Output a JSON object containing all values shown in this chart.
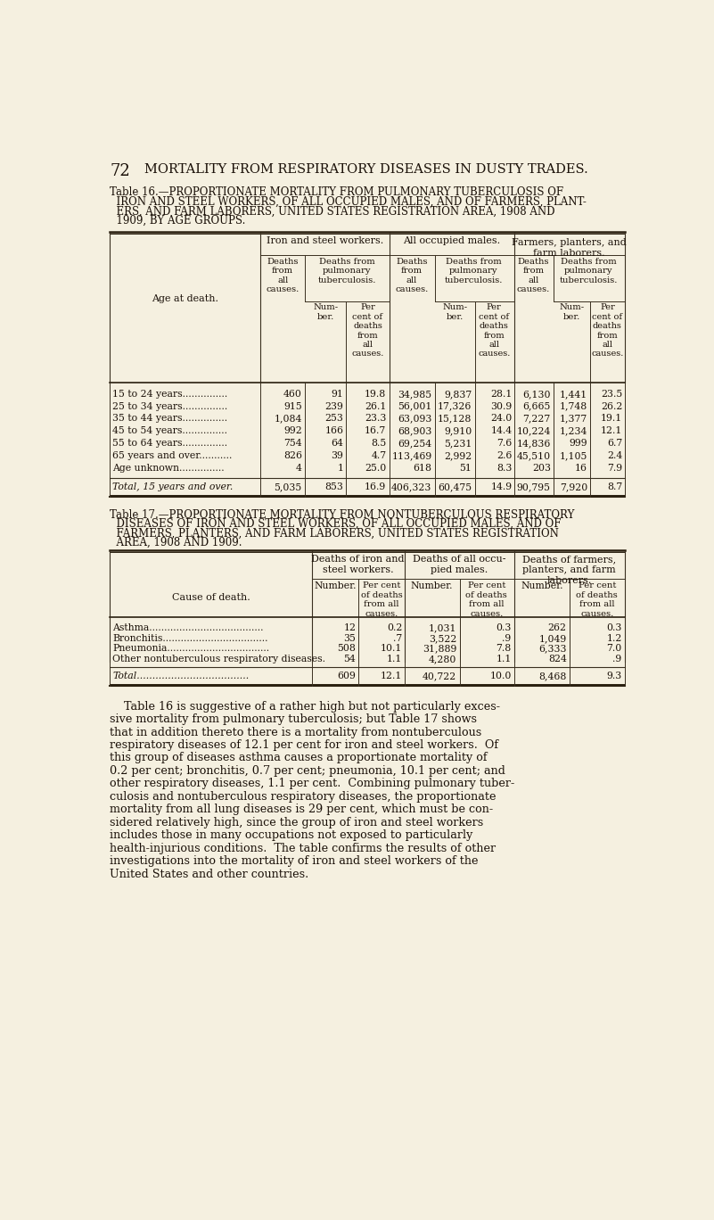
{
  "bg_color": "#f5f0e0",
  "page_header_num": "72",
  "page_header_text": "MORTALITY FROM RESPIRATORY DISEASES IN DUSTY TRADES.",
  "table16_title_lines": [
    "Table 16.—PROPORTIONATE MORTALITY FROM PULMONARY TUBERCULOSIS OF",
    "  IRON AND STEEL WORKERS, OF ALL OCCUPIED MALES, AND OF FARMERS, PLANT-",
    "  ERS, AND FARM LABORERS, UNITED STATES REGISTRATION AREA, 1908 AND",
    "  1909, BY AGE GROUPS."
  ],
  "table16_ages": [
    "15 to 24 years...............",
    "25 to 34 years...............",
    "35 to 44 years...............",
    "45 to 54 years...............",
    "55 to 64 years...............",
    "65 years and over...........",
    "Age unknown..............."
  ],
  "table16_data": [
    [
      "460",
      "91",
      "19.8",
      "34,985",
      "9,837",
      "28.1",
      "6,130",
      "1,441",
      "23.5"
    ],
    [
      "915",
      "239",
      "26.1",
      "56,001",
      "17,326",
      "30.9",
      "6,665",
      "1,748",
      "26.2"
    ],
    [
      "1,084",
      "253",
      "23.3",
      "63,093",
      "15,128",
      "24.0",
      "7,227",
      "1,377",
      "19.1"
    ],
    [
      "992",
      "166",
      "16.7",
      "68,903",
      "9,910",
      "14.4",
      "10,224",
      "1,234",
      "12.1"
    ],
    [
      "754",
      "64",
      "8.5",
      "69,254",
      "5,231",
      "7.6",
      "14,836",
      "999",
      "6.7"
    ],
    [
      "826",
      "39",
      "4.7",
      "113,469",
      "2,992",
      "2.6",
      "45,510",
      "1,105",
      "2.4"
    ],
    [
      "4",
      "1",
      "25.0",
      "618",
      "51",
      "8.3",
      "203",
      "16",
      "7.9"
    ]
  ],
  "table16_total_label": "Total, 15 years and over.",
  "table16_total": [
    "5,035",
    "853",
    "16.9",
    "406,323",
    "60,475",
    "14.9",
    "90,795",
    "7,920",
    "8.7"
  ],
  "table17_title_lines": [
    "Table 17.—PROPORTIONATE MORTALITY FROM NONTUBERCULOUS RESPIRATORY",
    "  DISEASES OF IRON AND STEEL WORKERS, OF ALL OCCUPIED MALES, AND OF",
    "  FARMERS, PLANTERS, AND FARM LABORERS, UNITED STATES REGISTRATION",
    "  AREA, 1908 AND 1909."
  ],
  "table17_causes": [
    "Asthma......................................",
    "Bronchitis...................................",
    "Pneumonia..................................",
    "Other nontuberculous respiratory diseases."
  ],
  "table17_data": [
    [
      "12",
      "0.2",
      "1,031",
      "0.3",
      "262",
      "0.3"
    ],
    [
      "35",
      ".7",
      "3,522",
      ".9",
      "1,049",
      "1.2"
    ],
    [
      "508",
      "10.1",
      "31,889",
      "7.8",
      "6,333",
      "7.0"
    ],
    [
      "54",
      "1.1",
      "4,280",
      "1.1",
      "824",
      ".9"
    ]
  ],
  "table17_total_label": "Total....................................",
  "table17_total": [
    "609",
    "12.1",
    "40,722",
    "10.0",
    "8,468",
    "9.3"
  ],
  "paragraph_lines": [
    "    Table 16 is suggestive of a rather high but not particularly exces-",
    "sive mortality from pulmonary tuberculosis; but Table 17 shows",
    "that in addition thereto there is a mortality from nontuberculous",
    "respiratory diseases of 12.1 per cent for iron and steel workers.  Of",
    "this group of diseases asthma causes a proportionate mortality of",
    "0.2 per cent; bronchitis, 0.7 per cent; pneumonia, 10.1 per cent; and",
    "other respiratory diseases, 1.1 per cent.  Combining pulmonary tuber-",
    "culosis and nontuberculous respiratory diseases, the proportionate",
    "mortality from all lung diseases is 29 per cent, which must be con-",
    "sidered relatively high, since the group of iron and steel workers",
    "includes those in many occupations not exposed to particularly",
    "health-injurious conditions.  The table confirms the results of other",
    "investigations into the mortality of iron and steel workers of the",
    "United States and other countries."
  ]
}
